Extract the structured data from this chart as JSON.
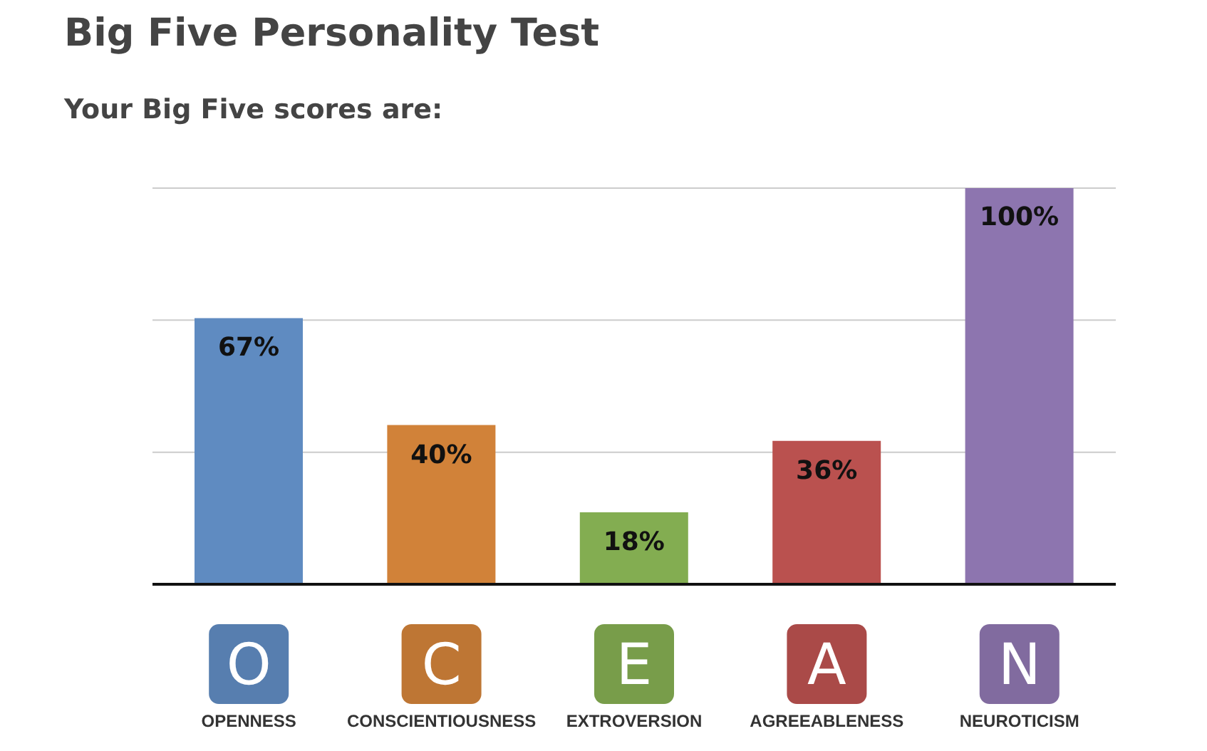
{
  "chart_data": {
    "type": "bar",
    "title": "Big Five Personality Test",
    "subtitle": "Your Big Five scores are:",
    "categories": [
      "OPENNESS",
      "CONSCIENTIOUSNESS",
      "EXTROVERSION",
      "AGREEABLENESS",
      "NEUROTICISM"
    ],
    "values": [
      67,
      40,
      18,
      36,
      100
    ],
    "colors": [
      "#6a9ad6",
      "#e8903f",
      "#92c05a",
      "#cf5a58",
      "#9d82c2"
    ],
    "value_labels": [
      "67%",
      "40%",
      "18%",
      "36%",
      "100%"
    ],
    "ylim": [
      0,
      100
    ],
    "yticks": [
      {
        "value": 33.3,
        "label": null
      },
      {
        "value": 66.7,
        "label": null
      },
      {
        "value": 100,
        "label": null
      }
    ],
    "grid": "y",
    "tick_labels": "x",
    "annotations": [
      "O",
      "C",
      "E",
      "A",
      "N"
    ]
  }
}
